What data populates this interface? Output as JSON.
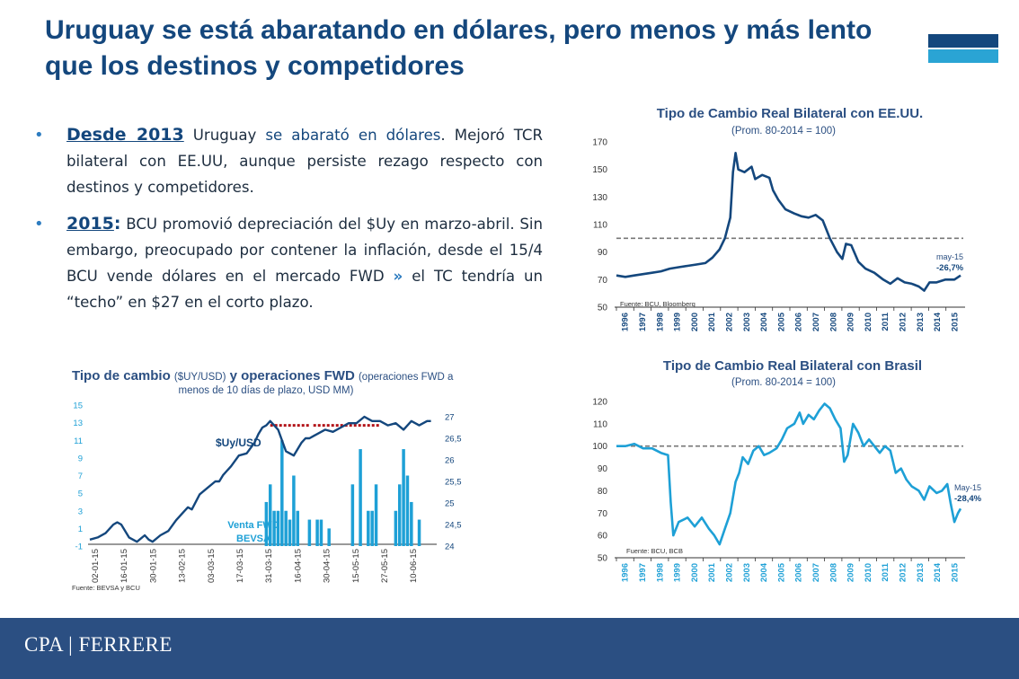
{
  "slide": {
    "title": "Uruguay se está abaratando en dólares, pero menos y más lento que los destinos y competidores",
    "footer_logo": "CPA | FERRERE"
  },
  "bullets": [
    {
      "lead": "Desde 2013",
      "parts": [
        {
          "text": " Uruguay ",
          "hl": false
        },
        {
          "text": "se abarató en dólares",
          "hl": true
        },
        {
          "text": ". Mejoró TCR bilateral con EE.UU, aunque persiste rezago respecto con destinos y competidores.",
          "hl": false
        }
      ]
    },
    {
      "lead": "2015",
      "colon": ":",
      "parts": [
        {
          "text": " BCU promovió depreciación del $Uy en marzo-abril. Sin embargo, preocupado por contener la inflación, desde el 15/4 BCU vende dólares en el mercado FWD ",
          "hl": false
        },
        {
          "text": "»",
          "chev": true
        },
        {
          "text": " el TC tendría un “techo” en $27 en el corto plazo.",
          "hl": false
        }
      ]
    }
  ],
  "colors": {
    "title": "#14477d",
    "accent": "#2aa4d4",
    "usa_line": "#14477d",
    "brasil_line": "#1ea0d6",
    "fwd_bar": "#1ea0d6",
    "ceiling_dash": "#b3141a",
    "footer": "#2b4f82"
  },
  "chart_data": [
    {
      "type": "line",
      "title": "Tipo de Cambio Real Bilateral con EE.UU.",
      "subtitle": "(Prom. 80-2014 = 100)",
      "x_ticks": [
        "1996",
        "1997",
        "1998",
        "1999",
        "2000",
        "2001",
        "2002",
        "2003",
        "2004",
        "2005",
        "2006",
        "2007",
        "2008",
        "2009",
        "2010",
        "2011",
        "2012",
        "2013",
        "2014",
        "2015"
      ],
      "y_ticks": [
        "50",
        "70",
        "90",
        "110",
        "130",
        "150",
        "170"
      ],
      "ylim": [
        50,
        170
      ],
      "xlim": [
        1996,
        2015.5
      ],
      "reference_line": 100,
      "annotation": [
        "may-15",
        "-26,7%"
      ],
      "source": "Fuente: BCU, Bloomberg",
      "series": [
        {
          "points": [
            [
              1996,
              73
            ],
            [
              1996.5,
              72
            ],
            [
              1997,
              73
            ],
            [
              1997.5,
              74
            ],
            [
              1998,
              75
            ],
            [
              1998.5,
              76
            ],
            [
              1999,
              78
            ],
            [
              1999.5,
              79
            ],
            [
              2000,
              80
            ],
            [
              2000.5,
              81
            ],
            [
              2001,
              82
            ],
            [
              2001.4,
              86
            ],
            [
              2001.8,
              92
            ],
            [
              2002.1,
              100
            ],
            [
              2002.4,
              115
            ],
            [
              2002.55,
              148
            ],
            [
              2002.7,
              162
            ],
            [
              2002.85,
              150
            ],
            [
              2003.2,
              148
            ],
            [
              2003.6,
              152
            ],
            [
              2003.8,
              143
            ],
            [
              2004.2,
              146
            ],
            [
              2004.6,
              144
            ],
            [
              2004.8,
              135
            ],
            [
              2005.1,
              128
            ],
            [
              2005.5,
              121
            ],
            [
              2006,
              118
            ],
            [
              2006.4,
              116
            ],
            [
              2006.8,
              115
            ],
            [
              2007.2,
              117
            ],
            [
              2007.6,
              113
            ],
            [
              2008,
              100
            ],
            [
              2008.4,
              90
            ],
            [
              2008.7,
              85
            ],
            [
              2008.9,
              96
            ],
            [
              2009.2,
              95
            ],
            [
              2009.6,
              83
            ],
            [
              2010,
              78
            ],
            [
              2010.5,
              75
            ],
            [
              2011,
              70
            ],
            [
              2011.4,
              67
            ],
            [
              2011.8,
              71
            ],
            [
              2012.2,
              68
            ],
            [
              2012.6,
              67
            ],
            [
              2013,
              65
            ],
            [
              2013.3,
              62
            ],
            [
              2013.6,
              68
            ],
            [
              2014,
              68
            ],
            [
              2014.5,
              70
            ],
            [
              2015,
              70
            ],
            [
              2015.35,
              73
            ]
          ]
        }
      ]
    },
    {
      "type": "line",
      "title": "Tipo de Cambio Real Bilateral con Brasil",
      "subtitle": "(Prom. 80-2014 = 100)",
      "x_ticks": [
        "1996",
        "1997",
        "1998",
        "1999",
        "2000",
        "2001",
        "2002",
        "2003",
        "2004",
        "2005",
        "2006",
        "2007",
        "2008",
        "2009",
        "2010",
        "2011",
        "2012",
        "2013",
        "2014",
        "2015"
      ],
      "y_ticks": [
        "50",
        "60",
        "70",
        "80",
        "90",
        "100",
        "110",
        "120"
      ],
      "ylim": [
        50,
        120
      ],
      "xlim": [
        1996,
        2015.5
      ],
      "reference_line": 100,
      "annotation": [
        "May-15",
        "-28,4%"
      ],
      "source": "Fuente: BCU, BCB",
      "series": [
        {
          "points": [
            [
              1996,
              100
            ],
            [
              1996.5,
              100
            ],
            [
              1997,
              101
            ],
            [
              1997.5,
              99
            ],
            [
              1998,
              99
            ],
            [
              1998.5,
              97
            ],
            [
              1998.9,
              96
            ],
            [
              1999.05,
              75
            ],
            [
              1999.2,
              60
            ],
            [
              1999.5,
              66
            ],
            [
              2000,
              68
            ],
            [
              2000.4,
              64
            ],
            [
              2000.8,
              68
            ],
            [
              2001.2,
              63
            ],
            [
              2001.5,
              60
            ],
            [
              2001.8,
              56
            ],
            [
              2002.1,
              63
            ],
            [
              2002.4,
              70
            ],
            [
              2002.7,
              84
            ],
            [
              2002.9,
              88
            ],
            [
              2003.1,
              95
            ],
            [
              2003.4,
              92
            ],
            [
              2003.7,
              98
            ],
            [
              2004,
              100
            ],
            [
              2004.3,
              96
            ],
            [
              2004.6,
              97
            ],
            [
              2005,
              99
            ],
            [
              2005.3,
              103
            ],
            [
              2005.6,
              108
            ],
            [
              2006,
              110
            ],
            [
              2006.3,
              115
            ],
            [
              2006.5,
              110
            ],
            [
              2006.8,
              114
            ],
            [
              2007.1,
              112
            ],
            [
              2007.4,
              116
            ],
            [
              2007.7,
              119
            ],
            [
              2008,
              117
            ],
            [
              2008.3,
              112
            ],
            [
              2008.6,
              108
            ],
            [
              2008.8,
              93
            ],
            [
              2009,
              96
            ],
            [
              2009.3,
              110
            ],
            [
              2009.6,
              106
            ],
            [
              2009.9,
              100
            ],
            [
              2010.2,
              103
            ],
            [
              2010.5,
              100
            ],
            [
              2010.8,
              97
            ],
            [
              2011.1,
              100
            ],
            [
              2011.4,
              98
            ],
            [
              2011.7,
              88
            ],
            [
              2012,
              90
            ],
            [
              2012.3,
              85
            ],
            [
              2012.6,
              82
            ],
            [
              2013,
              80
            ],
            [
              2013.3,
              76
            ],
            [
              2013.6,
              82
            ],
            [
              2014,
              79
            ],
            [
              2014.3,
              80
            ],
            [
              2014.6,
              83
            ],
            [
              2014.8,
              74
            ],
            [
              2015,
              66
            ],
            [
              2015.2,
              70
            ],
            [
              2015.35,
              72
            ]
          ]
        }
      ]
    },
    {
      "type": "bar+line",
      "title": "Tipo de cambio",
      "title_parts": [
        "Tipo de cambio ",
        "($UY/USD)",
        " y operaciones FWD ",
        "(operaciones FWD a menos de 10 días de plazo, USD MM)"
      ],
      "x_ticks": [
        "02-01-15",
        "16-01-15",
        "30-01-15",
        "13-02-15",
        "03-03-15",
        "17-03-15",
        "31-03-15",
        "16-04-15",
        "30-04-15",
        "15-05-15",
        "27-05-15",
        "10-06-15"
      ],
      "y_left_ticks": [
        "-1",
        "1",
        "3",
        "5",
        "7",
        "9",
        "11",
        "13",
        "15"
      ],
      "y_left_lim": [
        -1,
        15
      ],
      "y_right_ticks": [
        "24",
        "24,5",
        "25",
        "25,5",
        "26",
        "26,5",
        "27"
      ],
      "y_right_lim": [
        24,
        27
      ],
      "source": "Fuente: BEVSA y BCU",
      "line_label": "$Uy/USD",
      "bar_label": [
        "Venta FWD",
        "BEVSA"
      ],
      "techo_segments": [
        [
          46,
          56
        ],
        [
          57,
          74
        ]
      ],
      "techo_level": 26.8,
      "bars": {
        "name": "Venta FWD BEVSA",
        "x": [
          45,
          46,
          47,
          48,
          49,
          50,
          51,
          52,
          53,
          56,
          58,
          59,
          61,
          67,
          69,
          71,
          72,
          73,
          78,
          79,
          80,
          81,
          82,
          84
        ],
        "values": [
          4,
          6,
          3,
          3,
          11,
          3,
          2,
          7,
          3,
          2,
          2,
          2,
          1,
          6,
          10,
          3,
          3,
          6,
          3,
          6,
          10,
          7,
          4,
          2
        ]
      },
      "series": [
        {
          "name": "$Uy/USD",
          "x": [
            0,
            2,
            4,
            6,
            7,
            8,
            9,
            10,
            12,
            14,
            15,
            16,
            18,
            20,
            22,
            24,
            25,
            26,
            28,
            30,
            32,
            33,
            34,
            35,
            36,
            38,
            40,
            42,
            43,
            44,
            45,
            46,
            47,
            48,
            50,
            52,
            54,
            55,
            56,
            57,
            58,
            60,
            62,
            64,
            66,
            68,
            70,
            71,
            72,
            74,
            76,
            78,
            80,
            82,
            84,
            86,
            87
          ],
          "values": [
            24.15,
            24.2,
            24.3,
            24.5,
            24.55,
            24.5,
            24.35,
            24.2,
            24.1,
            24.25,
            24.15,
            24.1,
            24.25,
            24.35,
            24.6,
            24.8,
            24.9,
            24.85,
            25.2,
            25.35,
            25.5,
            25.5,
            25.65,
            25.75,
            25.85,
            26.1,
            26.15,
            26.4,
            26.6,
            26.75,
            26.8,
            26.9,
            26.8,
            26.7,
            26.2,
            26.1,
            26.4,
            26.5,
            26.5,
            26.55,
            26.6,
            26.7,
            26.65,
            26.75,
            26.85,
            26.85,
            27.0,
            26.95,
            26.9,
            26.9,
            26.8,
            26.85,
            26.7,
            26.9,
            26.8,
            26.9,
            26.9
          ]
        }
      ]
    }
  ]
}
